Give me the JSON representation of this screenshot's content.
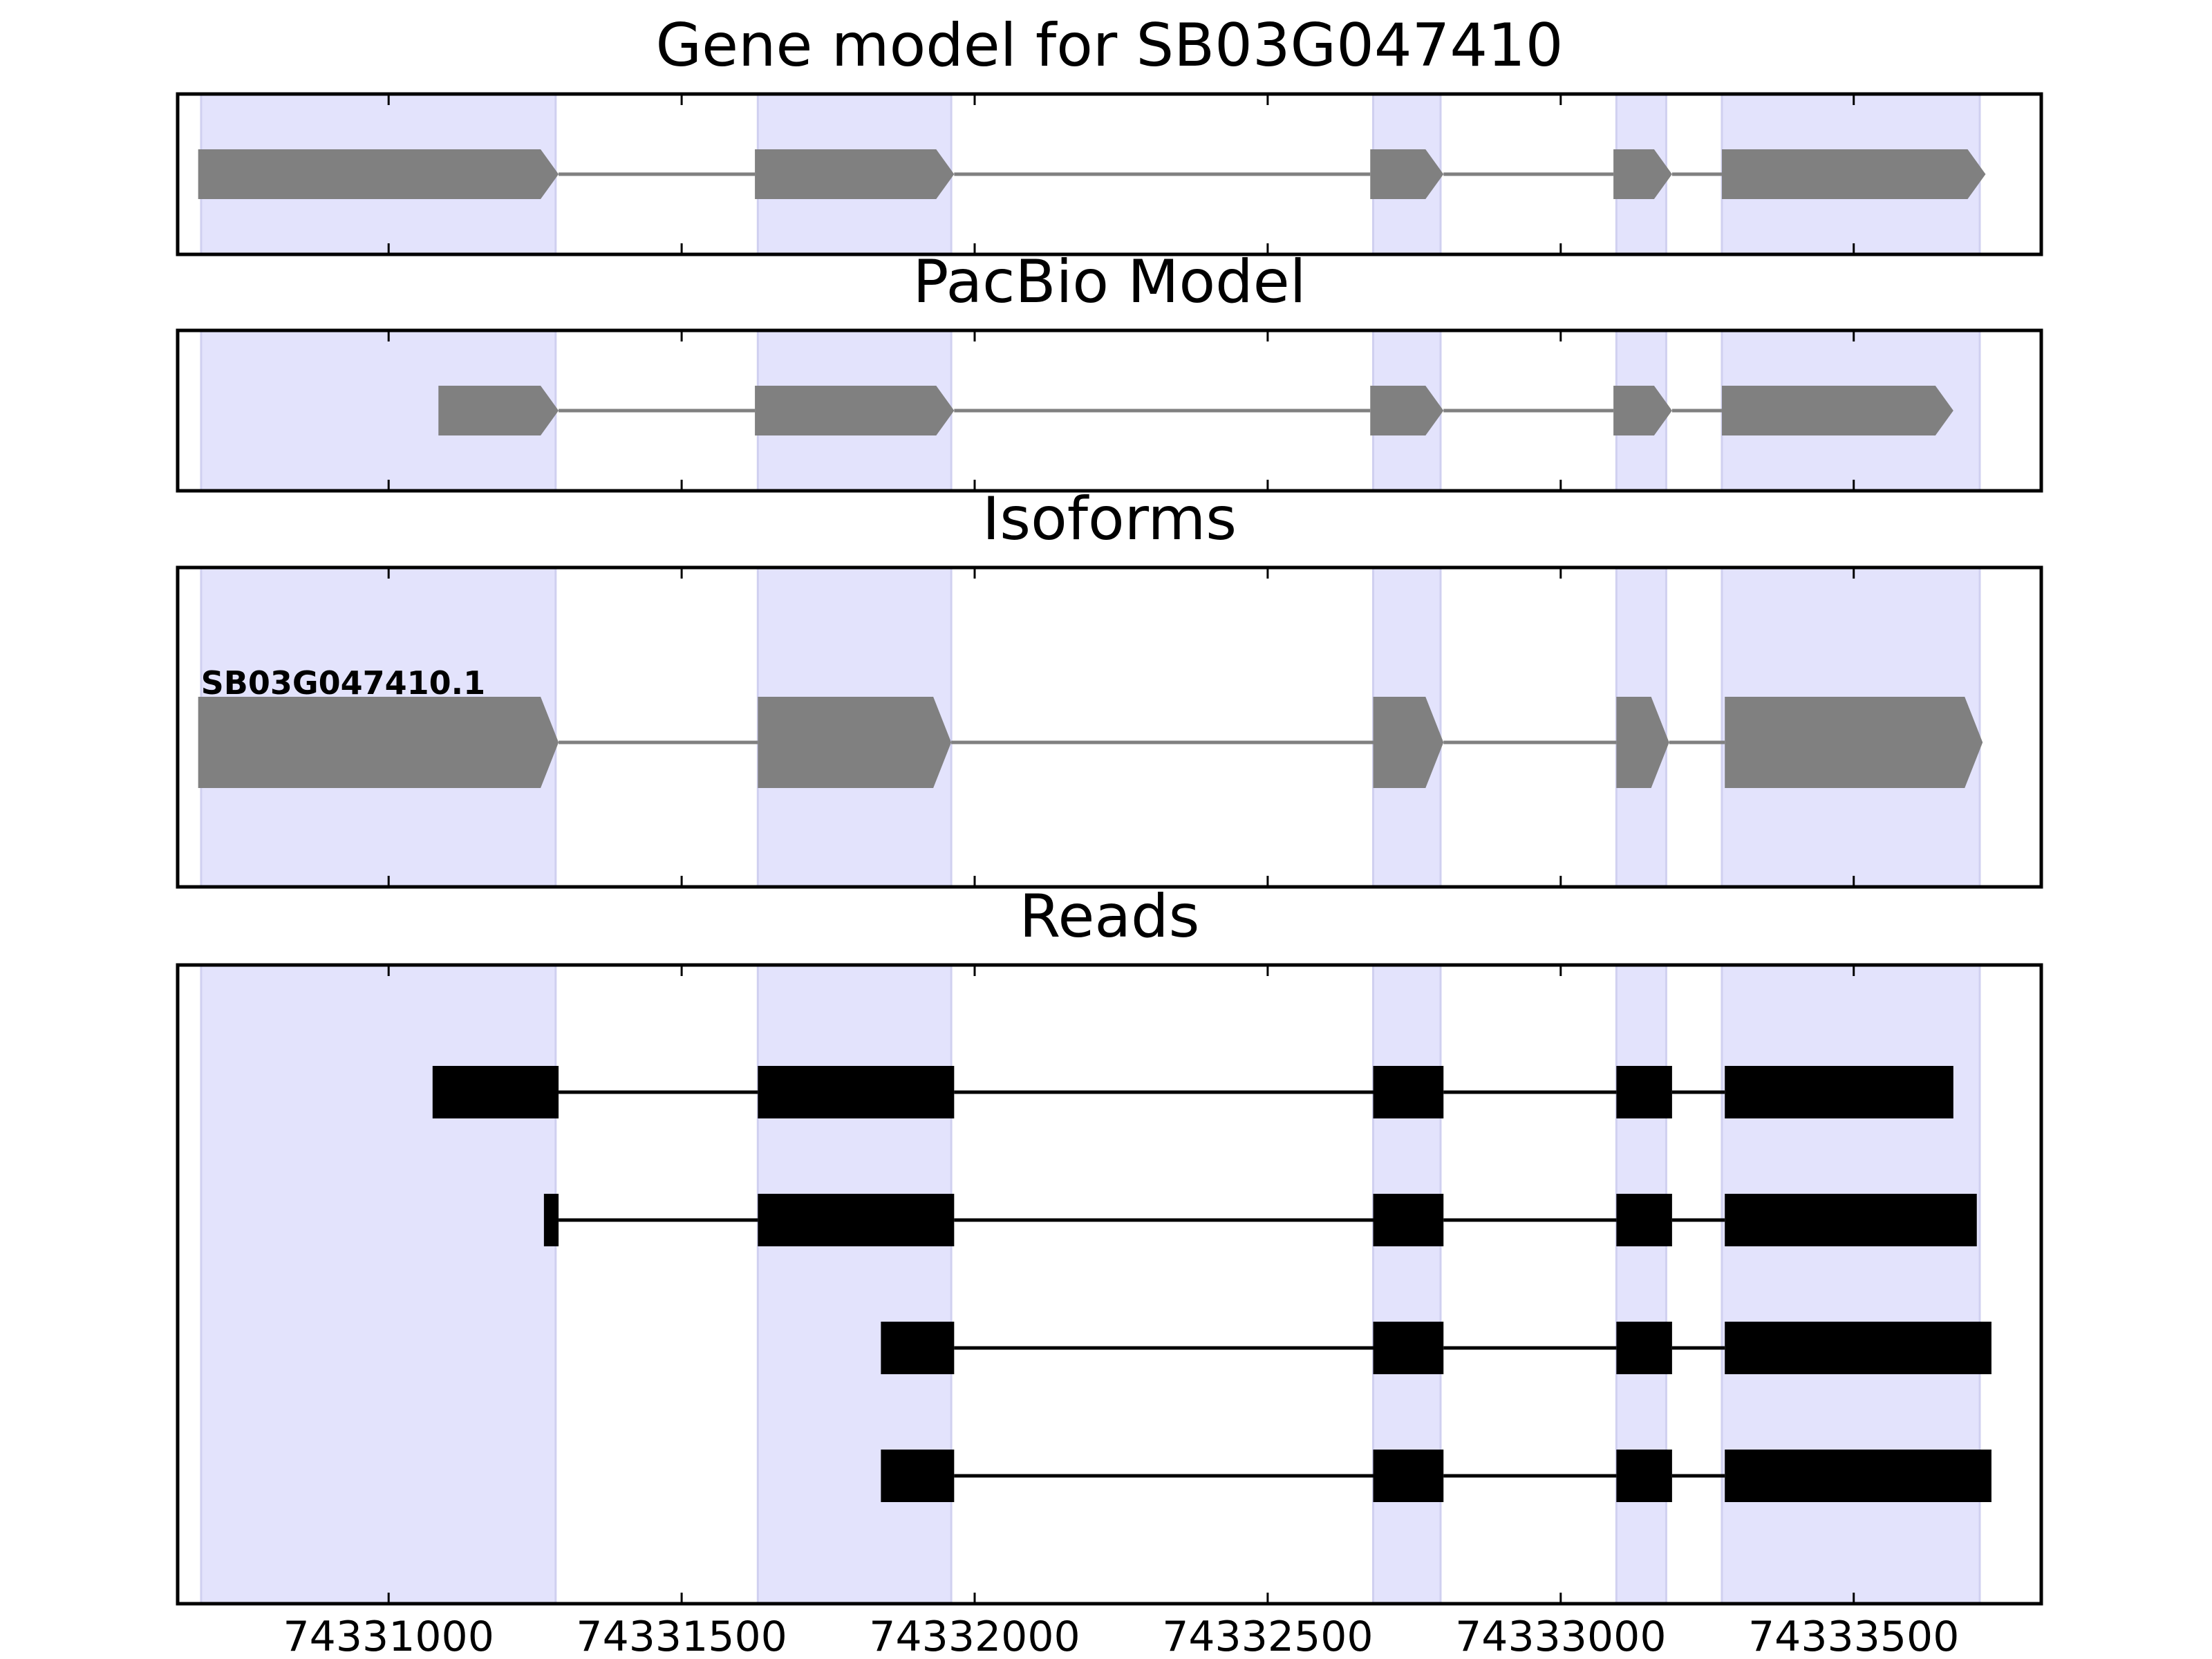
{
  "chart_data": {
    "type": "gene-structure",
    "xlim": [
      74330640,
      74333820
    ],
    "x_ticks": [
      74331000,
      74331500,
      74332000,
      74332500,
      74333000,
      74333500
    ],
    "x_tick_labels": [
      "74331000",
      "74331500",
      "74332000",
      "74332500",
      "74333000",
      "74333500"
    ],
    "colors": {
      "highlight": "#e3e3fc",
      "highlight_edge": "#d0d0f0",
      "gene_shape": "#808080",
      "read_shape": "#000000",
      "axes": "#000000"
    },
    "highlight_regions": [
      [
        74330680,
        74331285
      ],
      [
        74331630,
        74331960
      ],
      [
        74332680,
        74332795
      ],
      [
        74333095,
        74333180
      ],
      [
        74333275,
        74333715
      ]
    ],
    "panels": [
      {
        "title": "Gene model for SB03G047410",
        "kind": "arrow",
        "tracks": [
          {
            "label": "",
            "exons": [
              [
                74330675,
                74331290
              ],
              [
                74331625,
                74331965
              ],
              [
                74332675,
                74332800
              ],
              [
                74333090,
                74333190
              ],
              [
                74333275,
                74333725
              ]
            ]
          }
        ]
      },
      {
        "title": "PacBio Model",
        "kind": "arrow",
        "tracks": [
          {
            "label": "",
            "exons": [
              [
                74331085,
                74331290
              ],
              [
                74331625,
                74331965
              ],
              [
                74332675,
                74332800
              ],
              [
                74333090,
                74333190
              ],
              [
                74333275,
                74333670
              ]
            ]
          }
        ]
      },
      {
        "title": "Isoforms",
        "kind": "arrow",
        "tracks": [
          {
            "label": "SB03G047410.1",
            "exons": [
              [
                74330675,
                74331290
              ],
              [
                74331630,
                74331960
              ],
              [
                74332680,
                74332800
              ],
              [
                74333095,
                74333185
              ],
              [
                74333280,
                74333720
              ]
            ]
          }
        ]
      },
      {
        "title": "Reads",
        "kind": "rect",
        "tracks": [
          {
            "label": "",
            "exons": [
              [
                74331075,
                74331290
              ],
              [
                74331630,
                74331965
              ],
              [
                74332680,
                74332800
              ],
              [
                74333095,
                74333190
              ],
              [
                74333280,
                74333670
              ]
            ]
          },
          {
            "label": "",
            "exons": [
              [
                74331265,
                74331290
              ],
              [
                74331630,
                74331965
              ],
              [
                74332680,
                74332800
              ],
              [
                74333095,
                74333190
              ],
              [
                74333280,
                74333710
              ]
            ]
          },
          {
            "label": "",
            "exons": [
              [
                74331840,
                74331965
              ],
              [
                74332680,
                74332800
              ],
              [
                74333095,
                74333190
              ],
              [
                74333280,
                74333735
              ]
            ]
          },
          {
            "label": "",
            "exons": [
              [
                74331840,
                74331965
              ],
              [
                74332680,
                74332800
              ],
              [
                74333095,
                74333190
              ],
              [
                74333280,
                74333735
              ]
            ]
          }
        ]
      }
    ]
  }
}
